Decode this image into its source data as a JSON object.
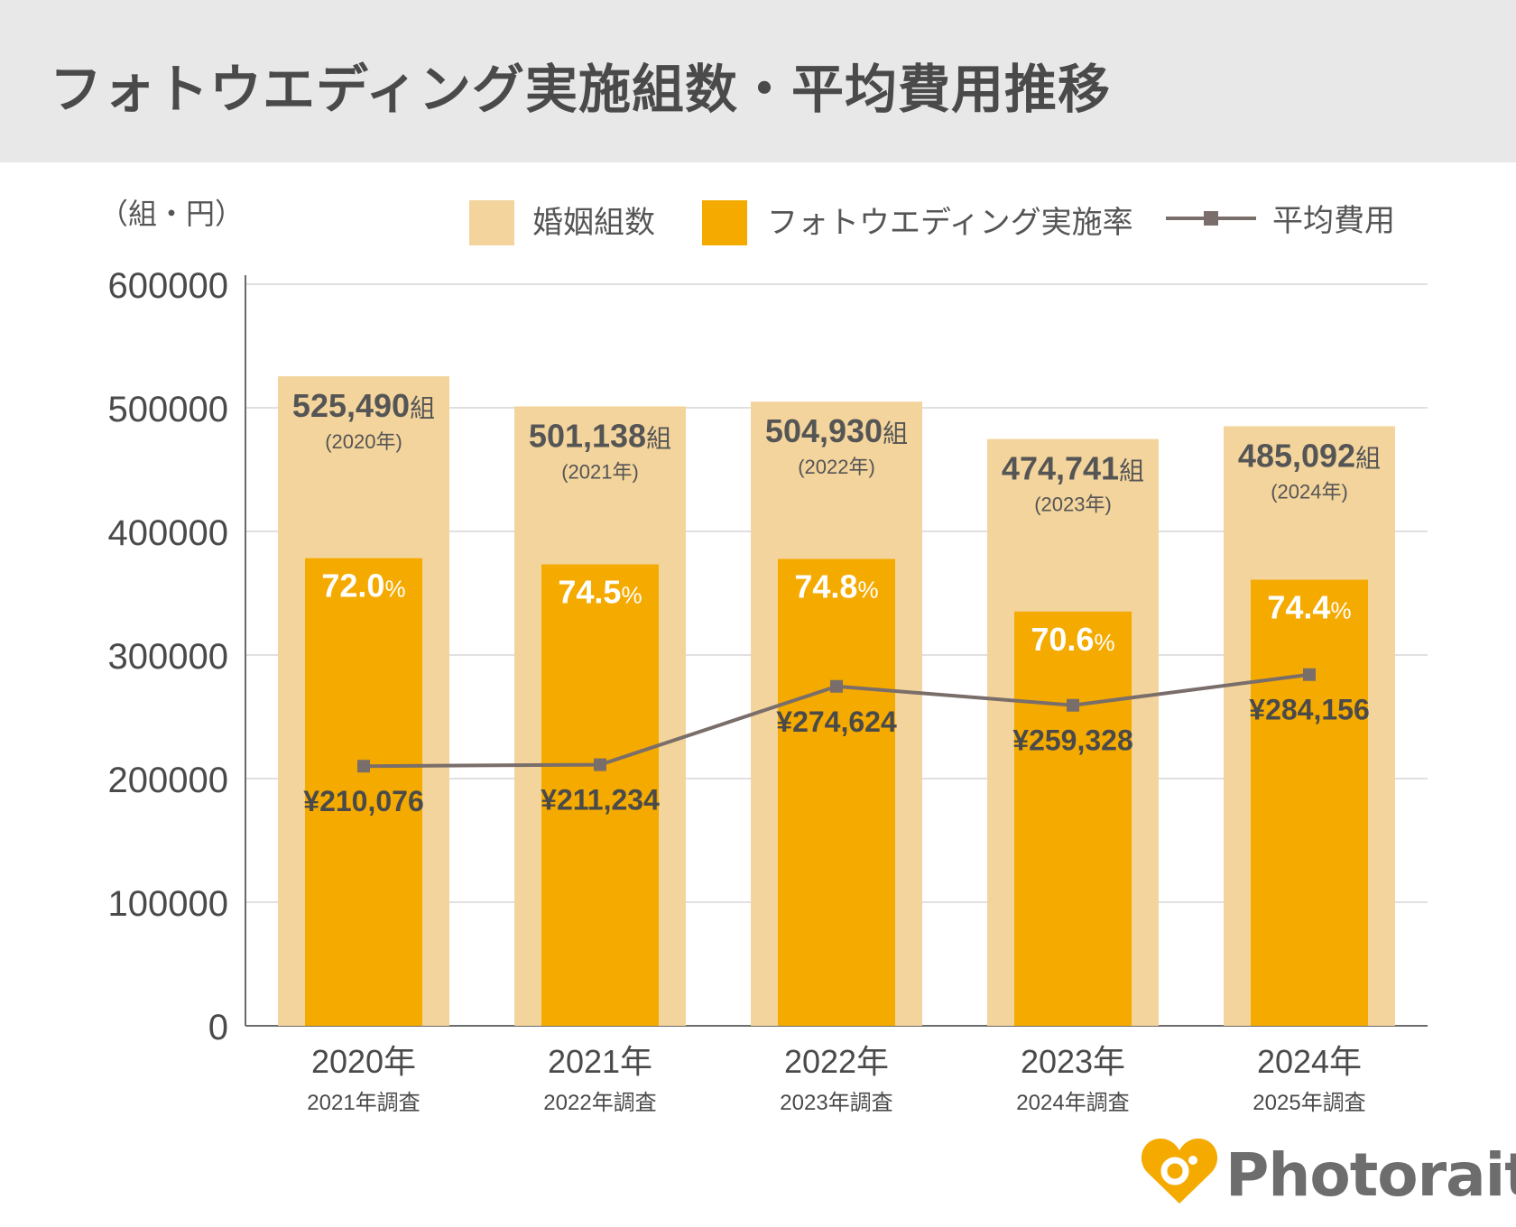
{
  "header": {
    "title": "フォトウエディング実施組数・平均費用推移"
  },
  "chart_data": {
    "type": "bar",
    "unit_label": "（組・円）",
    "categories": [
      "2020年",
      "2021年",
      "2022年",
      "2023年",
      "2024年"
    ],
    "sublabels": [
      "2021年調査",
      "2022年調査",
      "2023年調査",
      "2024年調査",
      "2025年調査"
    ],
    "ylim": [
      0,
      600000
    ],
    "yticks": [
      0,
      100000,
      200000,
      300000,
      400000,
      500000,
      600000
    ],
    "grid": true,
    "legend_position": "top-right",
    "series": [
      {
        "name": "婚姻組数",
        "kind": "bar",
        "color": "#f3d49c",
        "values": [
          525490,
          501138,
          504930,
          474741,
          485092
        ],
        "labels": [
          "525,490",
          "501,138",
          "504,930",
          "474,741",
          "485,092"
        ],
        "label_unit": "組",
        "label_years": [
          "(2020年)",
          "(2021年)",
          "(2022年)",
          "(2023年)",
          "(2024年)"
        ]
      },
      {
        "name": "フォトウエディング実施率",
        "kind": "bar",
        "color": "#f5aa00",
        "rates": [
          72.0,
          74.5,
          74.8,
          70.6,
          74.4
        ],
        "labels": [
          "72.0",
          "74.5",
          "74.8",
          "70.6",
          "74.4"
        ],
        "label_unit": "%"
      },
      {
        "name": "平均費用",
        "kind": "line",
        "color": "#7a6e6a",
        "values": [
          210076,
          211234,
          274624,
          259328,
          284156
        ],
        "labels": [
          "¥210,076",
          "¥211,234",
          "¥274,624",
          "¥259,328",
          "¥284,156"
        ]
      }
    ]
  },
  "brand": {
    "name": "Photorait",
    "color": "#f5aa00",
    "text_color": "#6d6d6d"
  }
}
